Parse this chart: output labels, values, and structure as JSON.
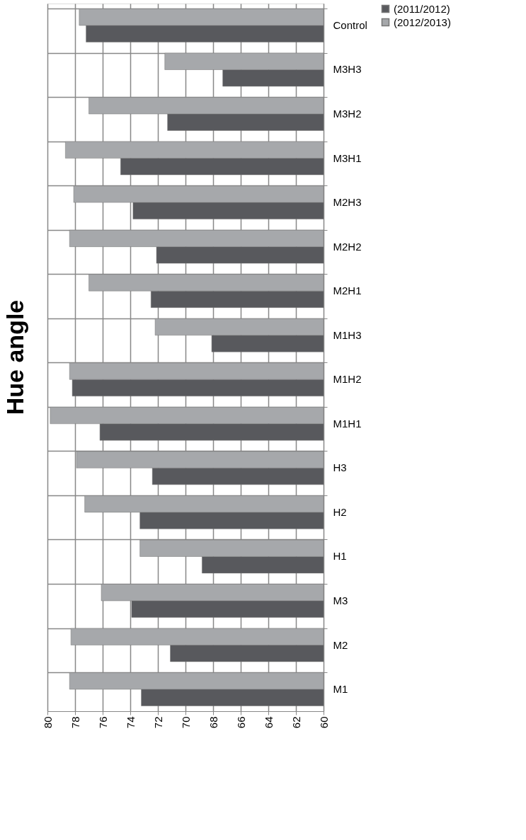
{
  "chart_data": {
    "type": "bar",
    "title": "Hue angle",
    "orientation": "horizontal",
    "categories": [
      "Control",
      "M3H3",
      "M3H2",
      "M3H1",
      "M2H3",
      "M2H2",
      "M2H1",
      "M1H3",
      "M1H2",
      "M1H1",
      "H3",
      "H2",
      "H1",
      "M3",
      "M2",
      "M1"
    ],
    "series": [
      {
        "name": "(2011/2012)",
        "color": "#58595d",
        "values": [
          77.2,
          67.3,
          71.3,
          74.7,
          73.8,
          72.1,
          72.5,
          68.1,
          78.2,
          76.2,
          72.4,
          73.3,
          68.8,
          73.9,
          71.1,
          73.2
        ]
      },
      {
        "name": "(2012/2013)",
        "color": "#a6a8ab",
        "values": [
          77.7,
          71.5,
          77.0,
          78.7,
          78.1,
          78.4,
          77.0,
          72.2,
          78.4,
          79.8,
          77.9,
          77.3,
          73.3,
          76.1,
          78.3,
          78.4
        ]
      }
    ],
    "xlim": [
      80,
      60
    ],
    "xticks": [
      80,
      78,
      76,
      74,
      72,
      70,
      68,
      66,
      64,
      62,
      60
    ],
    "grid": true,
    "legend": "right"
  }
}
